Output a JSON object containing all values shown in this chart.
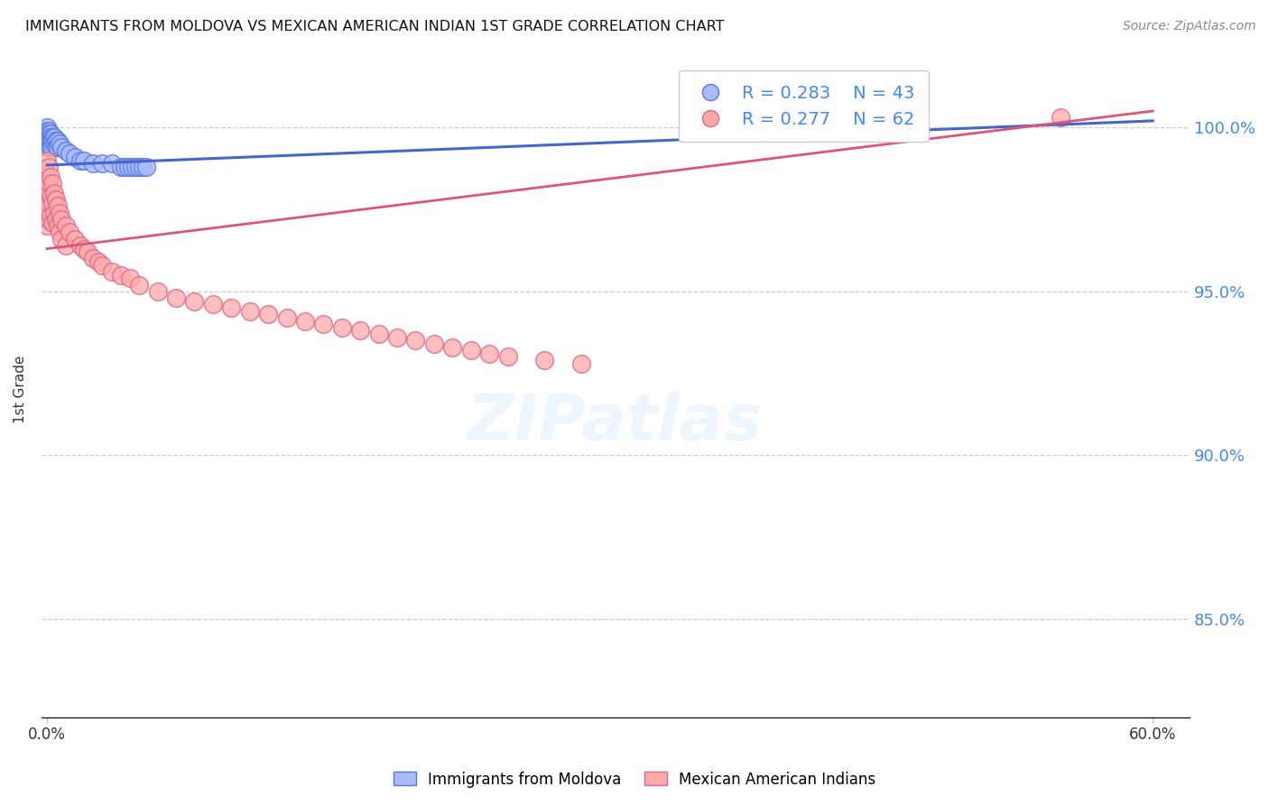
{
  "title": "IMMIGRANTS FROM MOLDOVA VS MEXICAN AMERICAN INDIAN 1ST GRADE CORRELATION CHART",
  "source": "Source: ZipAtlas.com",
  "ylabel": "1st Grade",
  "ytick_labels": [
    "100.0%",
    "95.0%",
    "90.0%",
    "85.0%"
  ],
  "ytick_values": [
    1.0,
    0.95,
    0.9,
    0.85
  ],
  "ylim": [
    0.82,
    1.02
  ],
  "xlim": [
    -0.003,
    0.62
  ],
  "legend_r1": "R = 0.283",
  "legend_n1": "N = 43",
  "legend_r2": "R = 0.277",
  "legend_n2": "N = 62",
  "color_blue": "#aabbff",
  "color_pink": "#ffaaaa",
  "color_blue_edge": "#5577dd",
  "color_pink_edge": "#dd6688",
  "color_blue_line": "#4466cc",
  "color_pink_line": "#dd5577",
  "color_ytick": "#4488ee",
  "background_color": "#ffffff",
  "grid_color": "#cccccc",
  "moldova_x": [
    0.0,
    0.0,
    0.0,
    0.0,
    0.0,
    0.0,
    0.0,
    0.001,
    0.001,
    0.001,
    0.001,
    0.001,
    0.002,
    0.002,
    0.002,
    0.002,
    0.003,
    0.003,
    0.003,
    0.004,
    0.004,
    0.005,
    0.005,
    0.006,
    0.006,
    0.007,
    0.008,
    0.01,
    0.012,
    0.015,
    0.018,
    0.02,
    0.025,
    0.03,
    0.035,
    0.04,
    0.042,
    0.044,
    0.046,
    0.048,
    0.05,
    0.052,
    0.054
  ],
  "moldova_y": [
    1.0,
    0.999,
    0.998,
    0.997,
    0.996,
    0.995,
    0.994,
    0.999,
    0.998,
    0.997,
    0.996,
    0.995,
    0.998,
    0.997,
    0.996,
    0.994,
    0.997,
    0.996,
    0.994,
    0.997,
    0.995,
    0.996,
    0.994,
    0.996,
    0.994,
    0.995,
    0.994,
    0.993,
    0.992,
    0.991,
    0.99,
    0.99,
    0.989,
    0.989,
    0.989,
    0.988,
    0.988,
    0.988,
    0.988,
    0.988,
    0.988,
    0.988,
    0.988
  ],
  "mexican_x": [
    0.0,
    0.0,
    0.0,
    0.0,
    0.0,
    0.001,
    0.001,
    0.001,
    0.001,
    0.002,
    0.002,
    0.002,
    0.003,
    0.003,
    0.003,
    0.004,
    0.004,
    0.005,
    0.005,
    0.006,
    0.006,
    0.007,
    0.007,
    0.008,
    0.008,
    0.01,
    0.01,
    0.012,
    0.015,
    0.018,
    0.02,
    0.022,
    0.025,
    0.028,
    0.03,
    0.035,
    0.04,
    0.045,
    0.05,
    0.06,
    0.07,
    0.08,
    0.09,
    0.1,
    0.11,
    0.12,
    0.13,
    0.14,
    0.15,
    0.16,
    0.17,
    0.18,
    0.19,
    0.2,
    0.21,
    0.22,
    0.23,
    0.24,
    0.25,
    0.27,
    0.29,
    0.55
  ],
  "mexican_y": [
    0.99,
    0.985,
    0.98,
    0.975,
    0.97,
    0.988,
    0.983,
    0.977,
    0.972,
    0.985,
    0.979,
    0.973,
    0.983,
    0.977,
    0.971,
    0.98,
    0.974,
    0.978,
    0.972,
    0.976,
    0.97,
    0.974,
    0.968,
    0.972,
    0.966,
    0.97,
    0.964,
    0.968,
    0.966,
    0.964,
    0.963,
    0.962,
    0.96,
    0.959,
    0.958,
    0.956,
    0.955,
    0.954,
    0.952,
    0.95,
    0.948,
    0.947,
    0.946,
    0.945,
    0.944,
    0.943,
    0.942,
    0.941,
    0.94,
    0.939,
    0.938,
    0.937,
    0.936,
    0.935,
    0.934,
    0.933,
    0.932,
    0.931,
    0.93,
    0.929,
    0.928,
    1.003
  ],
  "blue_line_x": [
    0.0,
    0.6
  ],
  "blue_line_y": [
    0.9885,
    1.002
  ],
  "pink_line_x": [
    0.0,
    0.6
  ],
  "pink_line_y": [
    0.963,
    1.005
  ]
}
